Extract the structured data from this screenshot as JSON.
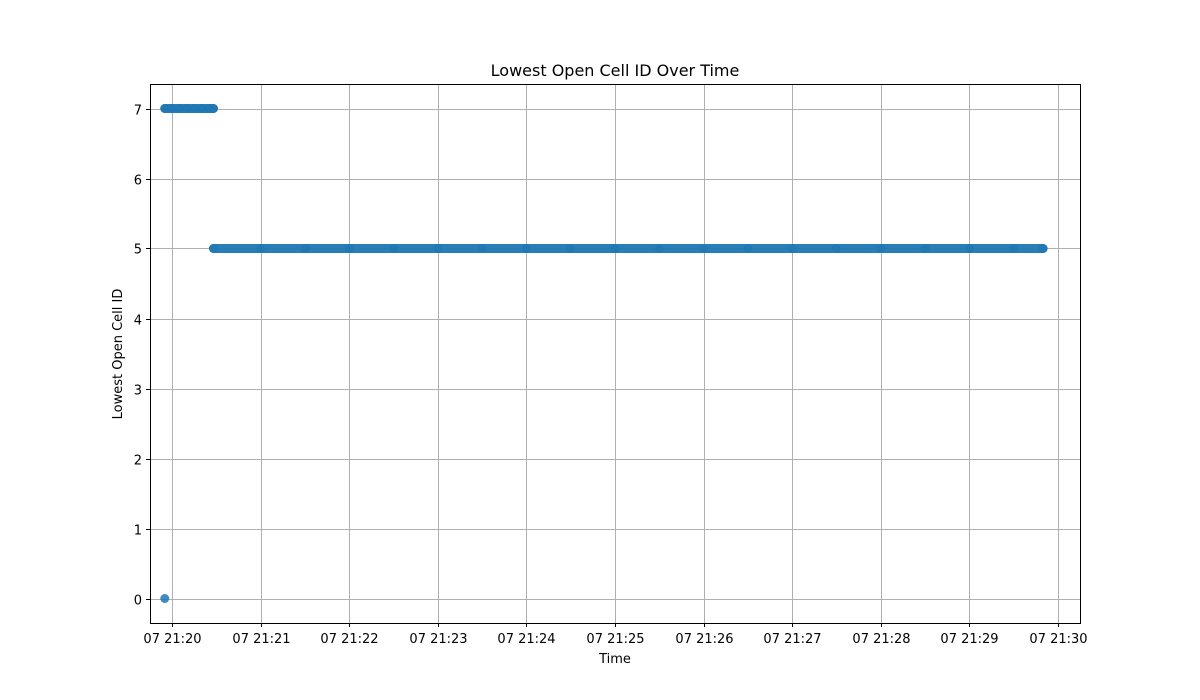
{
  "chart_data": {
    "type": "scatter",
    "title": "Lowest Open Cell ID Over Time",
    "xlabel": "Time",
    "ylabel": "Lowest Open Cell ID",
    "x_ticks": [
      "07 21:20",
      "07 21:21",
      "07 21:22",
      "07 21:23",
      "07 21:24",
      "07 21:25",
      "07 21:26",
      "07 21:27",
      "07 21:28",
      "07 21:29",
      "07 21:30"
    ],
    "y_ticks": [
      "0",
      "1",
      "2",
      "3",
      "4",
      "5",
      "6",
      "7"
    ],
    "xlim": [
      "21:19:45",
      "21:30:15"
    ],
    "ylim": [
      -0.35,
      7.35
    ],
    "grid": true,
    "marker_color": "#1f77b4",
    "series": [
      {
        "points": [
          {
            "x": "21:19:55",
            "y": 0
          },
          {
            "x": "21:19:55",
            "y": 7
          },
          {
            "x": "21:20:00",
            "y": 7
          },
          {
            "x": "21:20:05",
            "y": 7
          },
          {
            "x": "21:20:10",
            "y": 7
          },
          {
            "x": "21:20:15",
            "y": 7
          },
          {
            "x": "21:20:20",
            "y": 7
          },
          {
            "x": "21:20:25",
            "y": 7
          },
          {
            "x": "21:20:28",
            "y": 7
          },
          {
            "x": "21:20:28",
            "y": 5
          },
          {
            "x": "21:21:00",
            "y": 5
          },
          {
            "x": "21:21:30",
            "y": 5
          },
          {
            "x": "21:22:00",
            "y": 5
          },
          {
            "x": "21:22:30",
            "y": 5
          },
          {
            "x": "21:23:00",
            "y": 5
          },
          {
            "x": "21:23:30",
            "y": 5
          },
          {
            "x": "21:24:00",
            "y": 5
          },
          {
            "x": "21:24:30",
            "y": 5
          },
          {
            "x": "21:25:00",
            "y": 5
          },
          {
            "x": "21:25:30",
            "y": 5
          },
          {
            "x": "21:26:00",
            "y": 5
          },
          {
            "x": "21:26:30",
            "y": 5
          },
          {
            "x": "21:27:00",
            "y": 5
          },
          {
            "x": "21:27:30",
            "y": 5
          },
          {
            "x": "21:28:00",
            "y": 5
          },
          {
            "x": "21:28:30",
            "y": 5
          },
          {
            "x": "21:29:00",
            "y": 5
          },
          {
            "x": "21:29:30",
            "y": 5
          },
          {
            "x": "21:29:50",
            "y": 5
          }
        ]
      }
    ]
  }
}
